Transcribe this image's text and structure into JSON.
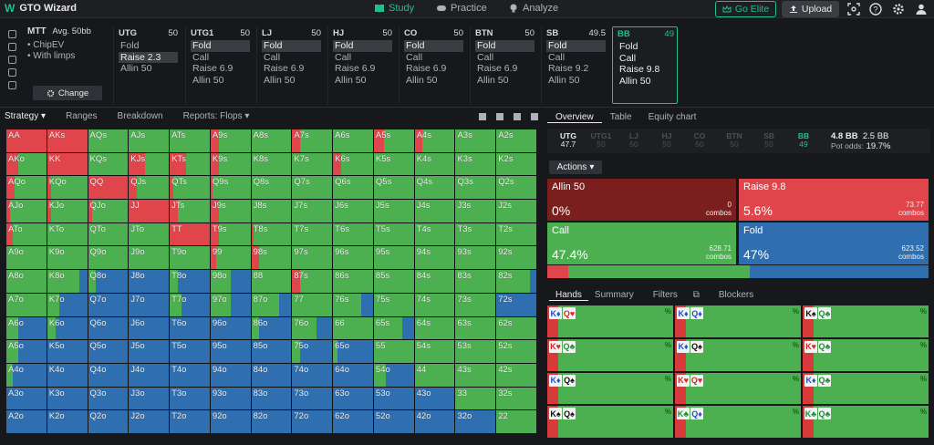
{
  "app": {
    "title": "GTO Wizard"
  },
  "nav": {
    "tabs": [
      "Study",
      "Practice",
      "Analyze"
    ],
    "active": "Study"
  },
  "top_actions": {
    "elite_label": "Go Elite",
    "upload_label": "Upload"
  },
  "mtt": {
    "format": "MTT",
    "stack": "Avg. 50bb",
    "options": [
      "ChipEV",
      "With limps"
    ],
    "change_label": "Change"
  },
  "positions": [
    {
      "name": "UTG",
      "stack": "50",
      "actions": [
        "Fold",
        "Raise 2.3",
        "Allin 50"
      ],
      "selected": 1
    },
    {
      "name": "UTG1",
      "stack": "50",
      "actions": [
        "Fold",
        "Call",
        "Raise 6.9",
        "Allin 50"
      ],
      "selected": 0
    },
    {
      "name": "LJ",
      "stack": "50",
      "actions": [
        "Fold",
        "Call",
        "Raise 6.9",
        "Allin 50"
      ],
      "selected": 0
    },
    {
      "name": "HJ",
      "stack": "50",
      "actions": [
        "Fold",
        "Call",
        "Raise 6.9",
        "Allin 50"
      ],
      "selected": 0
    },
    {
      "name": "CO",
      "stack": "50",
      "actions": [
        "Fold",
        "Call",
        "Raise 6.9",
        "Allin 50"
      ],
      "selected": 0
    },
    {
      "name": "BTN",
      "stack": "50",
      "actions": [
        "Fold",
        "Call",
        "Raise 6.9",
        "Allin 50"
      ],
      "selected": 0
    },
    {
      "name": "SB",
      "stack": "49.5",
      "actions": [
        "Fold",
        "Call",
        "Raise 9.2",
        "Allin 50"
      ],
      "selected": 0
    },
    {
      "name": "BB",
      "stack": "49",
      "actions": [
        "Fold",
        "Call",
        "Raise 9.8",
        "Allin 50"
      ],
      "selected": -1
    }
  ],
  "left_tabs": {
    "strategy": "Strategy",
    "ranges": "Ranges",
    "breakdown": "Breakdown",
    "reports": "Reports: Flops"
  },
  "right_tabs": [
    "Overview",
    "Table",
    "Equity chart"
  ],
  "strip": {
    "positions": [
      {
        "name": "UTG",
        "val": "47.7"
      },
      {
        "name": "UTG1",
        "val": "50"
      },
      {
        "name": "LJ",
        "val": "50"
      },
      {
        "name": "HJ",
        "val": "50"
      },
      {
        "name": "CO",
        "val": "50"
      },
      {
        "name": "BTN",
        "val": "50"
      },
      {
        "name": "SB",
        "val": "50"
      },
      {
        "name": "BB",
        "val": "49"
      }
    ],
    "pot_a": "4.8 BB",
    "pot_b": "2.5 BB",
    "pot_odds_label": "Pot odds:",
    "pot_odds": "19.7%"
  },
  "actions_label": "Actions",
  "action_boxes": [
    {
      "name": "Allin 50",
      "pct": "0%",
      "combos": "0",
      "combos_label": "combos",
      "color": "#7a1e1e"
    },
    {
      "name": "Raise 9.8",
      "pct": "5.6%",
      "combos": "73.77",
      "combos_label": "combos",
      "color": "#e0454b"
    },
    {
      "name": "Call",
      "pct": "47.4%",
      "combos": "628.71",
      "combos_label": "combos",
      "color": "#4caf50"
    },
    {
      "name": "Fold",
      "pct": "47%",
      "combos": "623.52",
      "combos_label": "combos",
      "color": "#2f6fb0"
    }
  ],
  "freq": {
    "allin": 0.0,
    "raise": 0.056,
    "call": 0.474,
    "fold": 0.47
  },
  "hand_tabs": [
    "Hands",
    "Summary",
    "Filters",
    "Blockers"
  ],
  "colors": {
    "raise": "#e0454b",
    "allin": "#7a1e1e",
    "call": "#4caf50",
    "fold": "#2f6fb0",
    "accent": "#1fc08a"
  },
  "grid": {
    "labels": [
      [
        "AA",
        "AKs",
        "AQs",
        "AJs",
        "ATs",
        "A9s",
        "A8s",
        "A7s",
        "A6s",
        "A5s",
        "A4s",
        "A3s",
        "A2s"
      ],
      [
        "AKo",
        "KK",
        "KQs",
        "KJs",
        "KTs",
        "K9s",
        "K8s",
        "K7s",
        "K6s",
        "K5s",
        "K4s",
        "K3s",
        "K2s"
      ],
      [
        "AQo",
        "KQo",
        "QQ",
        "QJs",
        "QTs",
        "Q9s",
        "Q8s",
        "Q7s",
        "Q6s",
        "Q5s",
        "Q4s",
        "Q3s",
        "Q2s"
      ],
      [
        "AJo",
        "KJo",
        "QJo",
        "JJ",
        "JTs",
        "J9s",
        "J8s",
        "J7s",
        "J6s",
        "J5s",
        "J4s",
        "J3s",
        "J2s"
      ],
      [
        "ATo",
        "KTo",
        "QTo",
        "JTo",
        "TT",
        "T9s",
        "T8s",
        "T7s",
        "T6s",
        "T5s",
        "T4s",
        "T3s",
        "T2s"
      ],
      [
        "A9o",
        "K9o",
        "Q9o",
        "J9o",
        "T9o",
        "99",
        "98s",
        "97s",
        "96s",
        "95s",
        "94s",
        "93s",
        "92s"
      ],
      [
        "A8o",
        "K8o",
        "Q8o",
        "J8o",
        "T8o",
        "98o",
        "88",
        "87s",
        "86s",
        "85s",
        "84s",
        "83s",
        "82s"
      ],
      [
        "A7o",
        "K7o",
        "Q7o",
        "J7o",
        "T7o",
        "97o",
        "87o",
        "77",
        "76s",
        "75s",
        "74s",
        "73s",
        "72s"
      ],
      [
        "A6o",
        "K6o",
        "Q6o",
        "J6o",
        "T6o",
        "96o",
        "86o",
        "76o",
        "66",
        "65s",
        "64s",
        "63s",
        "62s"
      ],
      [
        "A5o",
        "K5o",
        "Q5o",
        "J5o",
        "T5o",
        "95o",
        "85o",
        "75o",
        "65o",
        "55",
        "54s",
        "53s",
        "52s"
      ],
      [
        "A4o",
        "K4o",
        "Q4o",
        "J4o",
        "T4o",
        "94o",
        "84o",
        "74o",
        "64o",
        "54o",
        "44",
        "43s",
        "42s"
      ],
      [
        "A3o",
        "K3o",
        "Q3o",
        "J3o",
        "T3o",
        "93o",
        "83o",
        "73o",
        "63o",
        "53o",
        "43o",
        "33",
        "32s"
      ],
      [
        "A2o",
        "K2o",
        "Q2o",
        "J2o",
        "T2o",
        "92o",
        "82o",
        "72o",
        "62o",
        "52o",
        "42o",
        "32o",
        "22"
      ]
    ],
    "strategy": [
      [
        [
          1,
          0,
          0
        ],
        [
          1,
          0,
          0
        ],
        [
          0,
          1,
          0
        ],
        [
          0,
          1,
          0
        ],
        [
          0,
          1,
          0
        ],
        [
          0.2,
          0.8,
          0
        ],
        [
          0,
          1,
          0
        ],
        [
          0.2,
          0.8,
          0
        ],
        [
          0,
          1,
          0
        ],
        [
          0.25,
          0.75,
          0
        ],
        [
          0.2,
          0.8,
          0
        ],
        [
          0,
          1,
          0
        ],
        [
          0,
          1,
          0
        ]
      ],
      [
        [
          0.3,
          0.7,
          0
        ],
        [
          1,
          0,
          0
        ],
        [
          0,
          1,
          0
        ],
        [
          0.4,
          0.6,
          0
        ],
        [
          0.4,
          0.6,
          0
        ],
        [
          0.2,
          0.8,
          0
        ],
        [
          0,
          1,
          0
        ],
        [
          0,
          1,
          0
        ],
        [
          0.2,
          0.8,
          0
        ],
        [
          0,
          1,
          0
        ],
        [
          0,
          1,
          0
        ],
        [
          0,
          1,
          0
        ],
        [
          0,
          1,
          0
        ]
      ],
      [
        [
          0.2,
          0.8,
          0
        ],
        [
          0.1,
          0.9,
          0
        ],
        [
          1,
          0,
          0
        ],
        [
          0.2,
          0.8,
          0
        ],
        [
          0.1,
          0.9,
          0
        ],
        [
          0.05,
          0.95,
          0
        ],
        [
          0,
          1,
          0
        ],
        [
          0,
          1,
          0
        ],
        [
          0,
          1,
          0
        ],
        [
          0,
          1,
          0
        ],
        [
          0,
          1,
          0
        ],
        [
          0,
          1,
          0
        ],
        [
          0,
          1,
          0
        ]
      ],
      [
        [
          0.1,
          0.9,
          0
        ],
        [
          0.1,
          0.9,
          0
        ],
        [
          0.1,
          0.9,
          0
        ],
        [
          1,
          0,
          0
        ],
        [
          0.2,
          0.8,
          0
        ],
        [
          0.2,
          0.8,
          0
        ],
        [
          0,
          1,
          0
        ],
        [
          0,
          1,
          0
        ],
        [
          0,
          1,
          0
        ],
        [
          0,
          1,
          0
        ],
        [
          0,
          1,
          0
        ],
        [
          0,
          1,
          0
        ],
        [
          0,
          1,
          0
        ]
      ],
      [
        [
          0.15,
          0.85,
          0
        ],
        [
          0,
          1,
          0
        ],
        [
          0,
          1,
          0
        ],
        [
          0,
          1,
          0
        ],
        [
          1,
          0,
          0
        ],
        [
          0.2,
          0.8,
          0
        ],
        [
          0.05,
          0.95,
          0
        ],
        [
          0,
          1,
          0
        ],
        [
          0,
          1,
          0
        ],
        [
          0,
          1,
          0
        ],
        [
          0,
          1,
          0
        ],
        [
          0,
          1,
          0
        ],
        [
          0,
          1,
          0
        ]
      ],
      [
        [
          0,
          1,
          0
        ],
        [
          0,
          1,
          0
        ],
        [
          0,
          1,
          0
        ],
        [
          0,
          1,
          0
        ],
        [
          0,
          1,
          0
        ],
        [
          0.15,
          0.85,
          0
        ],
        [
          0.2,
          0.8,
          0
        ],
        [
          0,
          1,
          0
        ],
        [
          0,
          1,
          0
        ],
        [
          0,
          1,
          0
        ],
        [
          0,
          1,
          0
        ],
        [
          0,
          1,
          0
        ],
        [
          0,
          1,
          0
        ]
      ],
      [
        [
          0,
          1,
          0
        ],
        [
          0,
          0.8,
          0.2
        ],
        [
          0,
          0.2,
          0.8
        ],
        [
          0,
          0,
          1
        ],
        [
          0,
          0.2,
          0.8
        ],
        [
          0,
          0.5,
          0.5
        ],
        [
          0,
          1,
          0
        ],
        [
          0.2,
          0.8,
          0
        ],
        [
          0,
          1,
          0
        ],
        [
          0,
          1,
          0
        ],
        [
          0,
          1,
          0
        ],
        [
          0,
          1,
          0
        ],
        [
          0,
          0.85,
          0.15
        ]
      ],
      [
        [
          0,
          1,
          0
        ],
        [
          0,
          0.3,
          0.7
        ],
        [
          0,
          0,
          1
        ],
        [
          0,
          0,
          1
        ],
        [
          0,
          0.3,
          0.7
        ],
        [
          0,
          0.5,
          0.5
        ],
        [
          0,
          0.7,
          0.3
        ],
        [
          0,
          1,
          0
        ],
        [
          0,
          0.7,
          0.3
        ],
        [
          0,
          1,
          0
        ],
        [
          0,
          1,
          0
        ],
        [
          0,
          1,
          0
        ],
        [
          0,
          0,
          1
        ]
      ],
      [
        [
          0,
          0.3,
          0.7
        ],
        [
          0,
          0.2,
          0.8
        ],
        [
          0,
          0,
          1
        ],
        [
          0,
          0,
          1
        ],
        [
          0,
          0,
          1
        ],
        [
          0,
          0,
          1
        ],
        [
          0,
          0.2,
          0.8
        ],
        [
          0,
          0.6,
          0.4
        ],
        [
          0,
          1,
          0
        ],
        [
          0,
          0.7,
          0.3
        ],
        [
          0,
          1,
          0
        ],
        [
          0,
          1,
          0
        ],
        [
          0,
          1,
          0
        ]
      ],
      [
        [
          0,
          0.3,
          0.7
        ],
        [
          0,
          0,
          1
        ],
        [
          0,
          0,
          1
        ],
        [
          0,
          0,
          1
        ],
        [
          0,
          0,
          1
        ],
        [
          0,
          0,
          1
        ],
        [
          0,
          0,
          1
        ],
        [
          0,
          0.2,
          0.8
        ],
        [
          0,
          0.1,
          0.9
        ],
        [
          0,
          1,
          0
        ],
        [
          0,
          1,
          0
        ],
        [
          0,
          1,
          0
        ],
        [
          0,
          1,
          0
        ]
      ],
      [
        [
          0,
          0.15,
          0.85
        ],
        [
          0,
          0,
          1
        ],
        [
          0,
          0,
          1
        ],
        [
          0,
          0,
          1
        ],
        [
          0,
          0,
          1
        ],
        [
          0,
          0,
          1
        ],
        [
          0,
          0,
          1
        ],
        [
          0,
          0,
          1
        ],
        [
          0,
          0,
          1
        ],
        [
          0,
          0.3,
          0.7
        ],
        [
          0,
          1,
          0
        ],
        [
          0,
          1,
          0
        ],
        [
          0,
          1,
          0
        ]
      ],
      [
        [
          0,
          0,
          1
        ],
        [
          0,
          0,
          1
        ],
        [
          0,
          0,
          1
        ],
        [
          0,
          0,
          1
        ],
        [
          0,
          0,
          1
        ],
        [
          0,
          0,
          1
        ],
        [
          0,
          0,
          1
        ],
        [
          0,
          0,
          1
        ],
        [
          0,
          0,
          1
        ],
        [
          0,
          0,
          1
        ],
        [
          0,
          0,
          1
        ],
        [
          0,
          1,
          0
        ],
        [
          0,
          1,
          0
        ]
      ],
      [
        [
          0,
          0,
          1
        ],
        [
          0,
          0,
          1
        ],
        [
          0,
          0,
          1
        ],
        [
          0,
          0,
          1
        ],
        [
          0,
          0,
          1
        ],
        [
          0,
          0,
          1
        ],
        [
          0,
          0,
          1
        ],
        [
          0,
          0,
          1
        ],
        [
          0,
          0,
          1
        ],
        [
          0,
          0,
          1
        ],
        [
          0,
          0,
          1
        ],
        [
          0,
          0,
          1
        ],
        [
          0,
          1,
          0
        ]
      ]
    ]
  },
  "hand_cells": [
    {
      "c1": "K♦",
      "c2": "Q♥",
      "pct": "%"
    },
    {
      "c1": "K♦",
      "c2": "Q♦",
      "pct": "%"
    },
    {
      "c1": "K♠",
      "c2": "Q♣",
      "pct": "%"
    },
    {
      "c1": "K♥",
      "c2": "Q♣",
      "pct": "%"
    },
    {
      "c1": "K♦",
      "c2": "Q♠",
      "pct": "%"
    },
    {
      "c1": "K♥",
      "c2": "Q♣",
      "pct": "%"
    },
    {
      "c1": "K♦",
      "c2": "Q♠",
      "pct": "%"
    },
    {
      "c1": "K♥",
      "c2": "Q♥",
      "pct": "%"
    },
    {
      "c1": "K♦",
      "c2": "Q♣",
      "pct": "%"
    },
    {
      "c1": "K♠",
      "c2": "Q♠",
      "pct": "%"
    },
    {
      "c1": "K♣",
      "c2": "Q♦",
      "pct": "%"
    },
    {
      "c1": "K♣",
      "c2": "Q♣",
      "pct": "%"
    }
  ]
}
